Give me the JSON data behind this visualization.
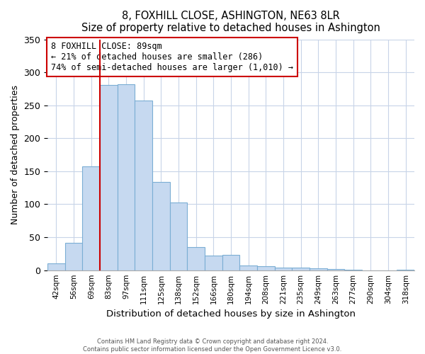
{
  "title": "8, FOXHILL CLOSE, ASHINGTON, NE63 8LR",
  "subtitle": "Size of property relative to detached houses in Ashington",
  "xlabel": "Distribution of detached houses by size in Ashington",
  "ylabel": "Number of detached properties",
  "categories": [
    "42sqm",
    "56sqm",
    "69sqm",
    "83sqm",
    "97sqm",
    "111sqm",
    "125sqm",
    "138sqm",
    "152sqm",
    "166sqm",
    "180sqm",
    "194sqm",
    "208sqm",
    "221sqm",
    "235sqm",
    "249sqm",
    "263sqm",
    "277sqm",
    "290sqm",
    "304sqm",
    "318sqm"
  ],
  "values": [
    10,
    42,
    157,
    281,
    282,
    257,
    134,
    103,
    35,
    22,
    23,
    7,
    6,
    4,
    4,
    3,
    2,
    1,
    0,
    0,
    1
  ],
  "bar_color": "#c6d9f0",
  "bar_edge_color": "#7baed4",
  "marker_line_color": "#cc0000",
  "annotation_title": "8 FOXHILL CLOSE: 89sqm",
  "annotation_line1": "← 21% of detached houses are smaller (286)",
  "annotation_line2": "74% of semi-detached houses are larger (1,010) →",
  "annotation_box_edge": "#cc0000",
  "ylim": [
    0,
    350
  ],
  "yticks": [
    0,
    50,
    100,
    150,
    200,
    250,
    300,
    350
  ],
  "grid_color": "#c8d4e8",
  "footer1": "Contains HM Land Registry data © Crown copyright and database right 2024.",
  "footer2": "Contains public sector information licensed under the Open Government Licence v3.0."
}
